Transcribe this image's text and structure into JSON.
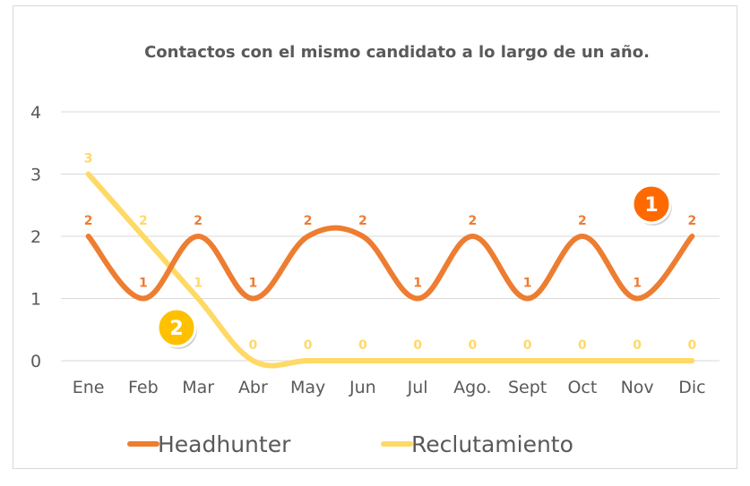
{
  "chart_data": {
    "type": "line",
    "title": "Contactos con el mismo candidato a lo largo de un año.",
    "categories": [
      "Ene",
      "Feb",
      "Mar",
      "Abr",
      "May",
      "Jun",
      "Jul",
      "Ago.",
      "Sept",
      "Oct",
      "Nov",
      "Dic"
    ],
    "ylim": [
      0,
      4
    ],
    "yticks": [
      "0",
      "1",
      "2",
      "3",
      "4"
    ],
    "grid": true,
    "legend_position": "bottom",
    "series": [
      {
        "name": "Headhunter",
        "color": "#ED7D31",
        "values": [
          2,
          1,
          2,
          1,
          2,
          2,
          1,
          2,
          1,
          2,
          1,
          2
        ]
      },
      {
        "name": "Reclutamiento",
        "color": "#FFD966",
        "values": [
          3,
          2,
          1,
          0,
          0,
          0,
          0,
          0,
          0,
          0,
          0,
          0
        ]
      }
    ],
    "annotations": [
      {
        "text": "1",
        "color": "#FF6A00"
      },
      {
        "text": "2",
        "color": "#FFC000"
      }
    ]
  }
}
